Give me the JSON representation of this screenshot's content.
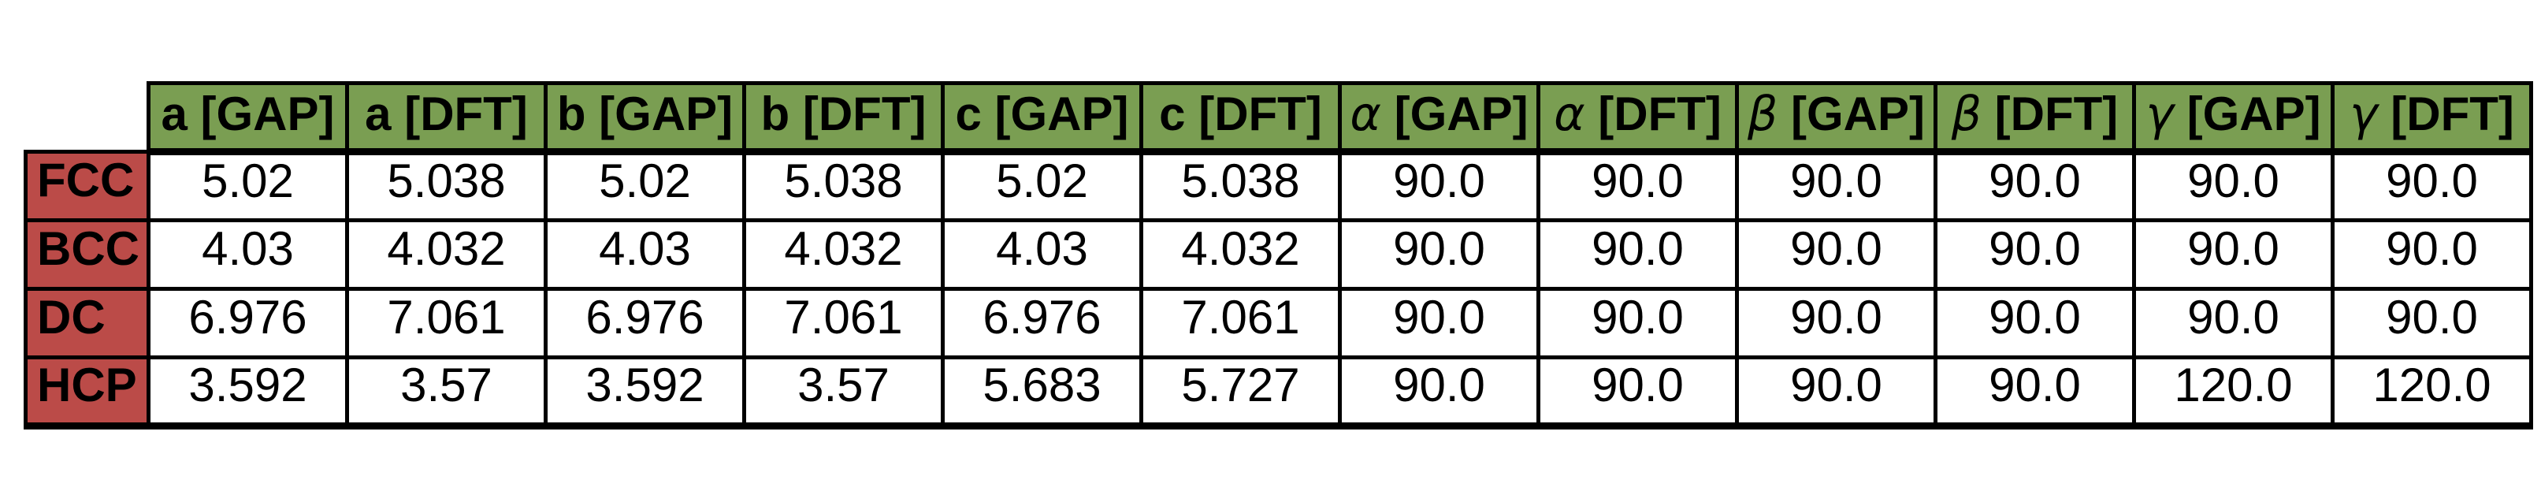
{
  "chart_data": {
    "type": "table",
    "title": "",
    "columns": [
      "α|a [GAP]",
      "α|a [DFT]",
      "α|b [GAP]",
      "α|b [DFT]",
      "α|c [GAP]",
      "α|c [DFT]",
      "g|α [GAP]",
      "g|α [DFT]",
      "g|β [GAP]",
      "g|β [DFT]",
      "g|γ [GAP]",
      "g|γ [DFT]"
    ],
    "column_labels": [
      "a [GAP]",
      "a [DFT]",
      "b [GAP]",
      "b [DFT]",
      "c [GAP]",
      "c [DFT]",
      "α [GAP]",
      "α [DFT]",
      "β [GAP]",
      "β [DFT]",
      "γ [GAP]",
      "γ [DFT]"
    ],
    "greek_columns": [
      "α [GAP]",
      "α [DFT]",
      "β [GAP]",
      "β [DFT]",
      "γ [GAP]",
      "γ [DFT]"
    ],
    "rows": [
      {
        "label": "FCC",
        "values": [
          "5.02",
          "5.038",
          "5.02",
          "5.038",
          "5.02",
          "5.038",
          "90.0",
          "90.0",
          "90.0",
          "90.0",
          "90.0",
          "90.0"
        ]
      },
      {
        "label": "BCC",
        "values": [
          "4.03",
          "4.032",
          "4.03",
          "4.032",
          "4.03",
          "4.032",
          "90.0",
          "90.0",
          "90.0",
          "90.0",
          "90.0",
          "90.0"
        ]
      },
      {
        "label": "DC",
        "values": [
          "6.976",
          "7.061",
          "6.976",
          "7.061",
          "6.976",
          "7.061",
          "90.0",
          "90.0",
          "90.0",
          "90.0",
          "90.0",
          "90.0"
        ]
      },
      {
        "label": "HCP",
        "values": [
          "3.592",
          "3.57",
          "3.592",
          "3.57",
          "5.683",
          "5.727",
          "90.0",
          "90.0",
          "90.0",
          "90.0",
          "120.0",
          "120.0"
        ]
      }
    ],
    "layout_hints": {
      "legend": "none",
      "grid": "full black borders",
      "corner_cell": "empty"
    },
    "colors": {
      "header_bg": "#7a9e52",
      "row_label_bg": "#bb4b48",
      "cell_bg": "#ffffff",
      "border": "#000000",
      "text": "#000000",
      "page_bg": "#ffffff"
    }
  }
}
